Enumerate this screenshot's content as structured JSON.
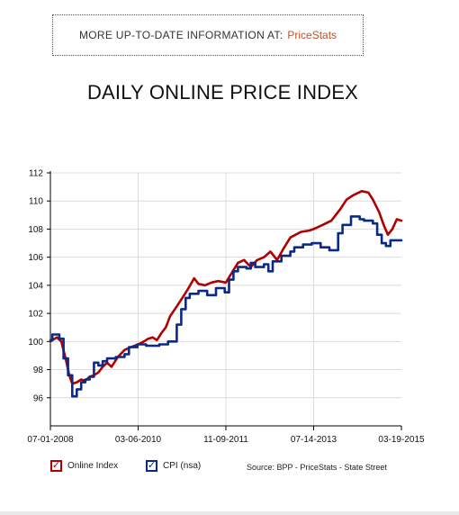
{
  "banner": {
    "text": "MORE UP-TO-DATE INFORMATION AT:",
    "link": "PriceStats"
  },
  "chart_data": {
    "type": "line",
    "title": "DAILY ONLINE PRICE INDEX",
    "xlabel": "",
    "ylabel": "",
    "x_ticks": [
      "07-01-2008",
      "03-06-2010",
      "11-09-2011",
      "07-14-2013",
      "03-19-2015"
    ],
    "xlim": [
      "2008-07-01",
      "2015-03-19"
    ],
    "ylim": [
      94,
      112
    ],
    "y_ticks": [
      96,
      98,
      100,
      102,
      104,
      106,
      108,
      110,
      112
    ],
    "grid": true,
    "legend_position": "bottom-left",
    "series": [
      {
        "name": "Online Index",
        "color": "#b00000",
        "step": false,
        "points": [
          [
            "2008-07-01",
            100.0
          ],
          [
            "2008-08-15",
            100.3
          ],
          [
            "2008-09-15",
            100.0
          ],
          [
            "2008-10-15",
            98.8
          ],
          [
            "2008-11-10",
            97.6
          ],
          [
            "2008-12-01",
            97.0
          ],
          [
            "2009-01-01",
            97.1
          ],
          [
            "2009-02-01",
            97.3
          ],
          [
            "2009-03-01",
            97.2
          ],
          [
            "2009-04-01",
            97.5
          ],
          [
            "2009-05-01",
            97.6
          ],
          [
            "2009-06-01",
            97.8
          ],
          [
            "2009-07-01",
            98.2
          ],
          [
            "2009-08-01",
            98.5
          ],
          [
            "2009-09-01",
            98.2
          ],
          [
            "2009-10-15",
            98.9
          ],
          [
            "2009-12-01",
            99.4
          ],
          [
            "2010-01-15",
            99.6
          ],
          [
            "2010-03-06",
            99.8
          ],
          [
            "2010-04-15",
            100.0
          ],
          [
            "2010-05-15",
            100.2
          ],
          [
            "2010-06-15",
            100.3
          ],
          [
            "2010-07-15",
            100.1
          ],
          [
            "2010-08-15",
            100.6
          ],
          [
            "2010-09-15",
            101.0
          ],
          [
            "2010-10-15",
            101.8
          ],
          [
            "2010-12-01",
            102.5
          ],
          [
            "2011-01-15",
            103.2
          ],
          [
            "2011-02-15",
            103.7
          ],
          [
            "2011-03-15",
            104.2
          ],
          [
            "2011-04-01",
            104.5
          ],
          [
            "2011-05-01",
            104.1
          ],
          [
            "2011-06-15",
            104.0
          ],
          [
            "2011-08-01",
            104.2
          ],
          [
            "2011-09-15",
            104.3
          ],
          [
            "2011-11-09",
            104.2
          ],
          [
            "2011-12-15",
            104.8
          ],
          [
            "2012-02-01",
            105.6
          ],
          [
            "2012-03-15",
            105.8
          ],
          [
            "2012-05-01",
            105.3
          ],
          [
            "2012-06-15",
            105.8
          ],
          [
            "2012-08-01",
            106.0
          ],
          [
            "2012-09-15",
            106.4
          ],
          [
            "2012-11-01",
            105.8
          ],
          [
            "2012-12-15",
            106.6
          ],
          [
            "2013-02-01",
            107.4
          ],
          [
            "2013-04-15",
            107.8
          ],
          [
            "2013-06-15",
            107.9
          ],
          [
            "2013-07-14",
            108.0
          ],
          [
            "2013-09-15",
            108.3
          ],
          [
            "2013-11-15",
            108.6
          ],
          [
            "2014-01-15",
            109.4
          ],
          [
            "2014-03-01",
            110.1
          ],
          [
            "2014-04-15",
            110.4
          ],
          [
            "2014-06-15",
            110.7
          ],
          [
            "2014-08-01",
            110.6
          ],
          [
            "2014-09-01",
            110.1
          ],
          [
            "2014-10-15",
            109.2
          ],
          [
            "2014-11-15",
            108.3
          ],
          [
            "2014-12-15",
            107.6
          ],
          [
            "2015-01-15",
            108.0
          ],
          [
            "2015-02-15",
            108.7
          ],
          [
            "2015-03-19",
            108.6
          ]
        ]
      },
      {
        "name": "CPI (nsa)",
        "color": "#0a2a8a",
        "step": true,
        "points": [
          [
            "2008-07-01",
            100.1
          ],
          [
            "2008-07-15",
            100.5
          ],
          [
            "2008-09-01",
            100.2
          ],
          [
            "2008-10-01",
            98.8
          ],
          [
            "2008-11-01",
            97.6
          ],
          [
            "2008-12-01",
            96.1
          ],
          [
            "2009-01-01",
            96.6
          ],
          [
            "2009-02-01",
            97.1
          ],
          [
            "2009-03-01",
            97.3
          ],
          [
            "2009-04-01",
            97.5
          ],
          [
            "2009-05-01",
            98.5
          ],
          [
            "2009-06-01",
            98.3
          ],
          [
            "2009-07-01",
            98.6
          ],
          [
            "2009-08-01",
            98.8
          ],
          [
            "2009-10-01",
            98.9
          ],
          [
            "2009-12-01",
            99.1
          ],
          [
            "2010-01-01",
            99.6
          ],
          [
            "2010-03-01",
            99.8
          ],
          [
            "2010-05-01",
            99.7
          ],
          [
            "2010-08-01",
            99.8
          ],
          [
            "2010-10-01",
            100.0
          ],
          [
            "2010-12-01",
            101.2
          ],
          [
            "2011-01-01",
            102.3
          ],
          [
            "2011-02-01",
            103.1
          ],
          [
            "2011-03-01",
            103.4
          ],
          [
            "2011-05-01",
            103.6
          ],
          [
            "2011-07-01",
            103.3
          ],
          [
            "2011-09-01",
            103.8
          ],
          [
            "2011-11-01",
            103.5
          ],
          [
            "2011-12-01",
            104.4
          ],
          [
            "2012-01-01",
            105.0
          ],
          [
            "2012-02-01",
            105.3
          ],
          [
            "2012-04-01",
            105.2
          ],
          [
            "2012-05-01",
            105.6
          ],
          [
            "2012-06-01",
            105.3
          ],
          [
            "2012-08-01",
            105.5
          ],
          [
            "2012-09-01",
            105.0
          ],
          [
            "2012-10-01",
            105.7
          ],
          [
            "2012-12-01",
            106.1
          ],
          [
            "2013-02-01",
            106.4
          ],
          [
            "2013-03-01",
            106.7
          ],
          [
            "2013-05-01",
            106.9
          ],
          [
            "2013-07-01",
            107.0
          ],
          [
            "2013-09-01",
            106.7
          ],
          [
            "2013-11-01",
            106.5
          ],
          [
            "2014-01-01",
            107.7
          ],
          [
            "2014-02-01",
            108.3
          ],
          [
            "2014-04-01",
            108.9
          ],
          [
            "2014-06-01",
            108.7
          ],
          [
            "2014-07-01",
            108.6
          ],
          [
            "2014-09-01",
            108.4
          ],
          [
            "2014-10-01",
            107.6
          ],
          [
            "2014-11-01",
            107.0
          ],
          [
            "2014-12-01",
            106.8
          ],
          [
            "2015-01-01",
            107.2
          ],
          [
            "2015-03-19",
            107.2
          ]
        ]
      }
    ]
  },
  "legend": {
    "items": [
      {
        "label": "Online Index",
        "color": "#b00000"
      },
      {
        "label": "CPI (nsa)",
        "color": "#0a2a8a"
      }
    ],
    "check_glyph": "✓",
    "source": "Source: BPP - PriceStats - State Street"
  }
}
